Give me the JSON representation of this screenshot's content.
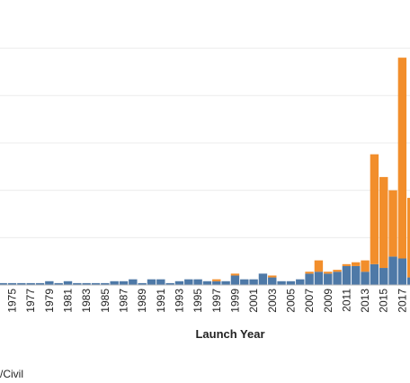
{
  "chart_data": {
    "type": "bar",
    "stacked": true,
    "xlabel": "Launch Year",
    "ylabel": "",
    "x": [
      1974,
      1975,
      1976,
      1977,
      1978,
      1979,
      1980,
      1981,
      1982,
      1983,
      1984,
      1985,
      1986,
      1987,
      1988,
      1989,
      1990,
      1991,
      1992,
      1993,
      1994,
      1995,
      1996,
      1997,
      1998,
      1999,
      2000,
      2001,
      2002,
      2003,
      2004,
      2005,
      2006,
      2007,
      2008,
      2009,
      2010,
      2011,
      2012,
      2013,
      2014,
      2015,
      2016,
      2017,
      2018
    ],
    "tick_labels": [
      "1975",
      "1977",
      "1979",
      "1981",
      "1983",
      "1985",
      "1987",
      "1989",
      "1991",
      "1993",
      "1995",
      "1997",
      "1999",
      "2001",
      "2003",
      "2005",
      "2007",
      "2009",
      "2011",
      "2013",
      "2015",
      "2017"
    ],
    "series": [
      {
        "color": "#4e79a7",
        "values": [
          1,
          1,
          1,
          1,
          1,
          2,
          1,
          2,
          1,
          1,
          1,
          1,
          2,
          2,
          3,
          1,
          3,
          3,
          1,
          2,
          3,
          3,
          2,
          2,
          2,
          5,
          3,
          3,
          6,
          4,
          2,
          2,
          3,
          6,
          7,
          6,
          7,
          10,
          10,
          7,
          11,
          9,
          15,
          14,
          4
        ]
      },
      {
        "color": "#f28e2b",
        "values": [
          0,
          0,
          0,
          0,
          0,
          0,
          0,
          0,
          0,
          0,
          0,
          0,
          0,
          0,
          0,
          0,
          0,
          0,
          0,
          0,
          0,
          0,
          0,
          1,
          0,
          1,
          0,
          0,
          0,
          1,
          0,
          0,
          0,
          1,
          6,
          1,
          1,
          1,
          2,
          6,
          58,
          48,
          35,
          106,
          42
        ]
      }
    ],
    "ylim": [
      0,
      140
    ],
    "grid": true,
    "legend_label_partial": "/Civil"
  }
}
